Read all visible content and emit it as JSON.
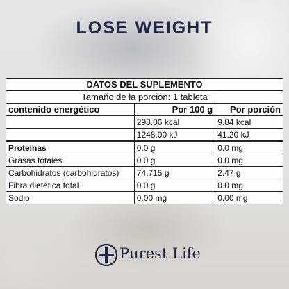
{
  "header": {
    "title": "LOSE WEIGHT"
  },
  "table": {
    "title": "DATOS DEL SUPLEMENTO",
    "subtitle": "Tamaño de la porción: 1 tableta",
    "columns": [
      "contenido energético",
      "Por 100 g",
      "Por porción"
    ],
    "energy_rows": [
      [
        "298.06 kcal",
        "9.84 kcal"
      ],
      [
        "1248.00 kJ",
        "41.20 kJ"
      ]
    ],
    "nutrient_rows": [
      [
        "Proteínas",
        "0.0 g",
        "0.0 mg"
      ],
      [
        "Grasas totales",
        "0.0 g",
        "0.0 mg"
      ],
      [
        "Carbohidratos (carbohidratos)",
        "74.715 g",
        "2.47 g"
      ],
      [
        "Fibra dietética total",
        "0.0 g",
        "0.0 mg"
      ],
      [
        "Sodio",
        "0.00 mg",
        "0.00 mg"
      ]
    ]
  },
  "footer": {
    "brand": "Purest Life"
  }
}
